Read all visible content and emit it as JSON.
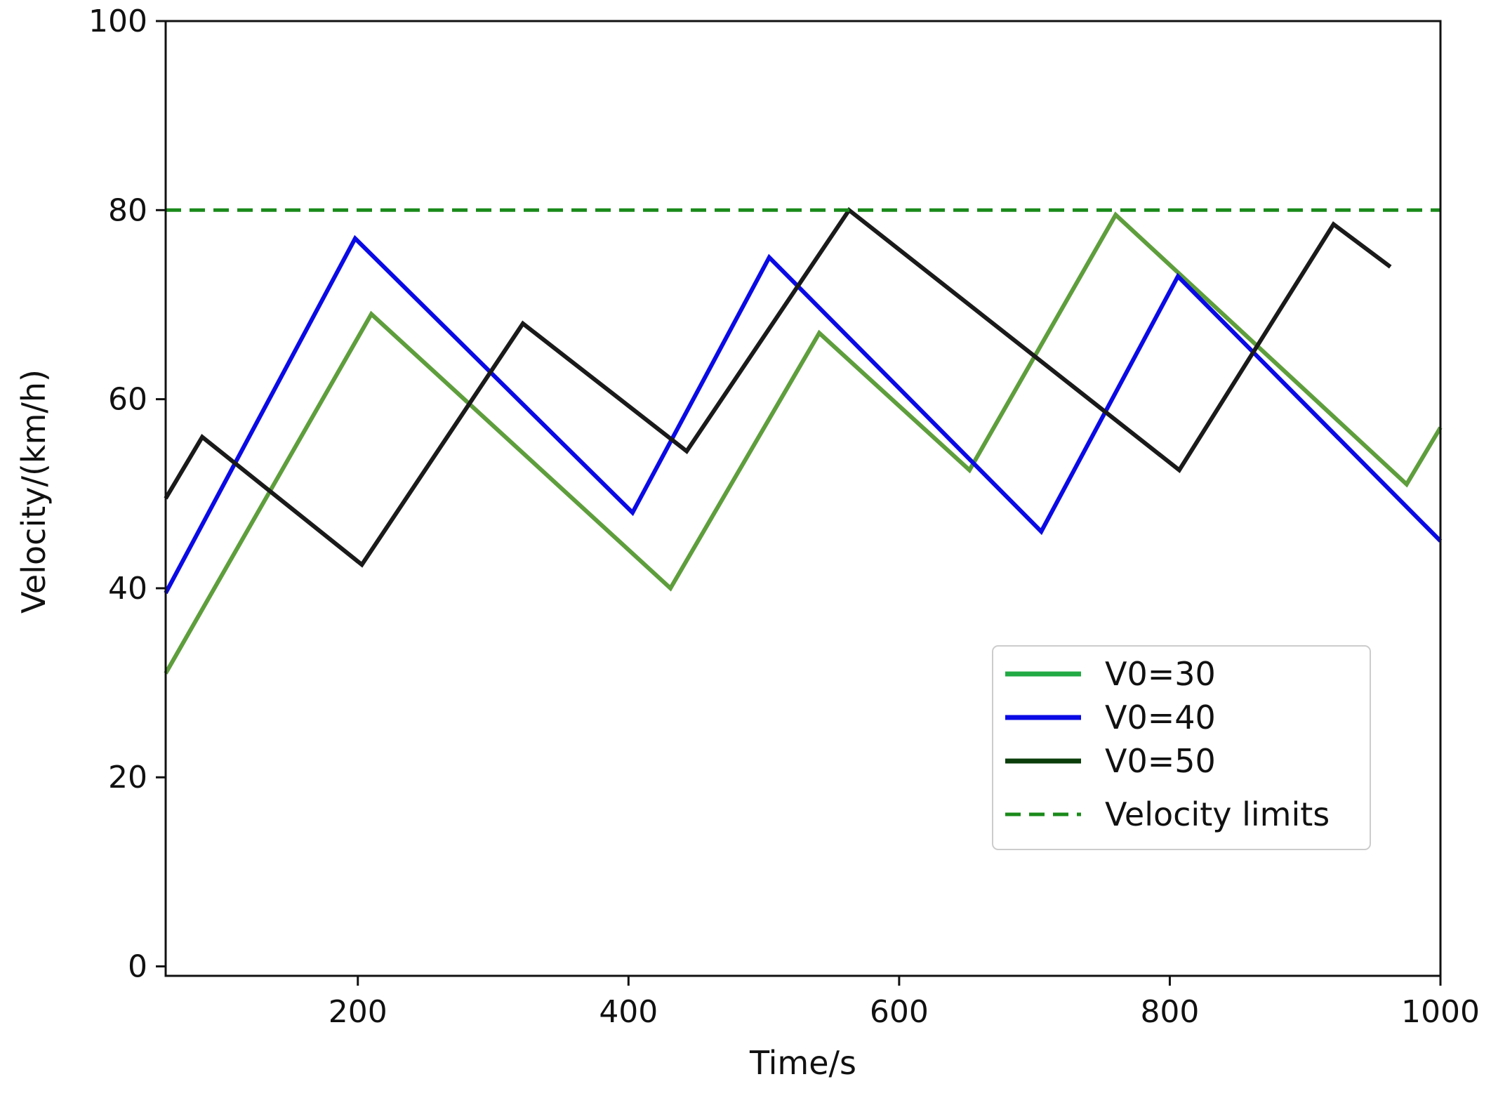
{
  "chart_data": {
    "type": "line",
    "title": "",
    "xlabel": "Time/s",
    "ylabel": "Velocity/(km/h)",
    "xlim": [
      58,
      1000
    ],
    "ylim": [
      -1,
      100
    ],
    "xticks": [
      200,
      400,
      600,
      800,
      1000
    ],
    "yticks": [
      0,
      20,
      40,
      60,
      80,
      100
    ],
    "grid": false,
    "legend_position": "lower-right",
    "series": [
      {
        "name": "V0=30",
        "color": "#5e9e3c",
        "legend_color": "#22aa44",
        "style": "solid",
        "points": [
          [
            58,
            31
          ],
          [
            210,
            69
          ],
          [
            431,
            40
          ],
          [
            541,
            67
          ],
          [
            652,
            52.5
          ],
          [
            760,
            79.5
          ],
          [
            975,
            51
          ],
          [
            1000,
            57
          ]
        ]
      },
      {
        "name": "V0=40",
        "color": "#0a0ae6",
        "legend_color": "#0a0ae6",
        "style": "solid",
        "points": [
          [
            58,
            39.5
          ],
          [
            198,
            77
          ],
          [
            403,
            48
          ],
          [
            504,
            75
          ],
          [
            705,
            46
          ],
          [
            806,
            73
          ],
          [
            1000,
            45
          ]
        ]
      },
      {
        "name": "V0=50",
        "color": "#1a1a1a",
        "legend_color": "#0a3d0a",
        "style": "solid",
        "points": [
          [
            58,
            49.5
          ],
          [
            85,
            56
          ],
          [
            203,
            42.5
          ],
          [
            322,
            68
          ],
          [
            443,
            54.5
          ],
          [
            563,
            80
          ],
          [
            807,
            52.5
          ],
          [
            921,
            78.5
          ],
          [
            963,
            74
          ]
        ]
      },
      {
        "name": "Velocity limits",
        "color": "#1a8a1a",
        "legend_color": "#1a8a1a",
        "style": "dashed",
        "points": [
          [
            58,
            80
          ],
          [
            1000,
            80
          ]
        ]
      }
    ]
  }
}
